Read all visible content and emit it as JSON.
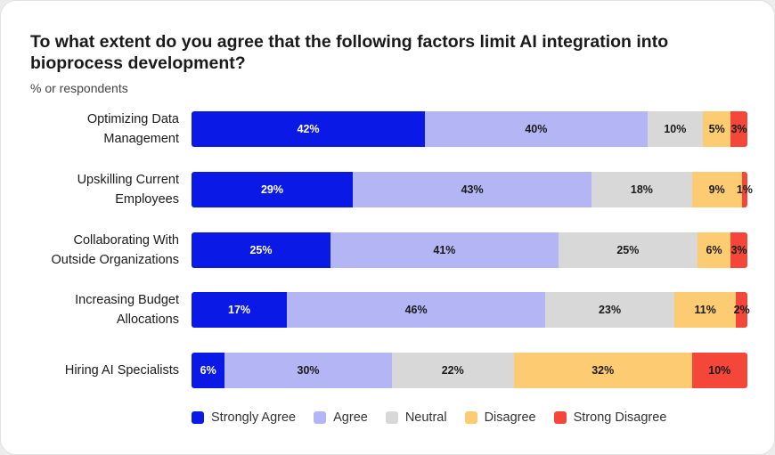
{
  "chart_data": {
    "type": "bar",
    "orientation": "horizontal",
    "stacked": true,
    "title": "To what extent do you agree that the following factors limit AI integration into bioprocess development?",
    "subtitle": "% or respondents",
    "categories": [
      "Optimizing Data Management",
      "Upskilling Current Employees",
      "Collaborating With Outside Organizations",
      "Increasing Budget Allocations",
      "Hiring AI Specialists"
    ],
    "category_lines": [
      [
        "Optimizing Data",
        "Management"
      ],
      [
        "Upskilling Current",
        "Employees"
      ],
      [
        "Collaborating With",
        "Outside Organizations"
      ],
      [
        "Increasing Budget",
        "Allocations"
      ],
      [
        "Hiring AI Specialists"
      ]
    ],
    "series": [
      {
        "name": "Strongly Agree",
        "color": "#0a19e6",
        "text_color": "#ffffff",
        "values": [
          42,
          29,
          25,
          17,
          6
        ]
      },
      {
        "name": "Agree",
        "color": "#b3b5f5",
        "text_color": "#1a1a1a",
        "values": [
          40,
          43,
          41,
          46,
          30
        ]
      },
      {
        "name": "Neutral",
        "color": "#d8d8d8",
        "text_color": "#1a1a1a",
        "values": [
          10,
          18,
          25,
          23,
          22
        ]
      },
      {
        "name": "Disagree",
        "color": "#fdcb72",
        "text_color": "#1a1a1a",
        "values": [
          5,
          9,
          6,
          11,
          32
        ]
      },
      {
        "name": "Strong Disagree",
        "color": "#f4473a",
        "text_color": "#1a1a1a",
        "values": [
          3,
          1,
          3,
          2,
          10
        ]
      }
    ],
    "value_suffix": "%",
    "legend_position": "bottom",
    "grid": false
  }
}
